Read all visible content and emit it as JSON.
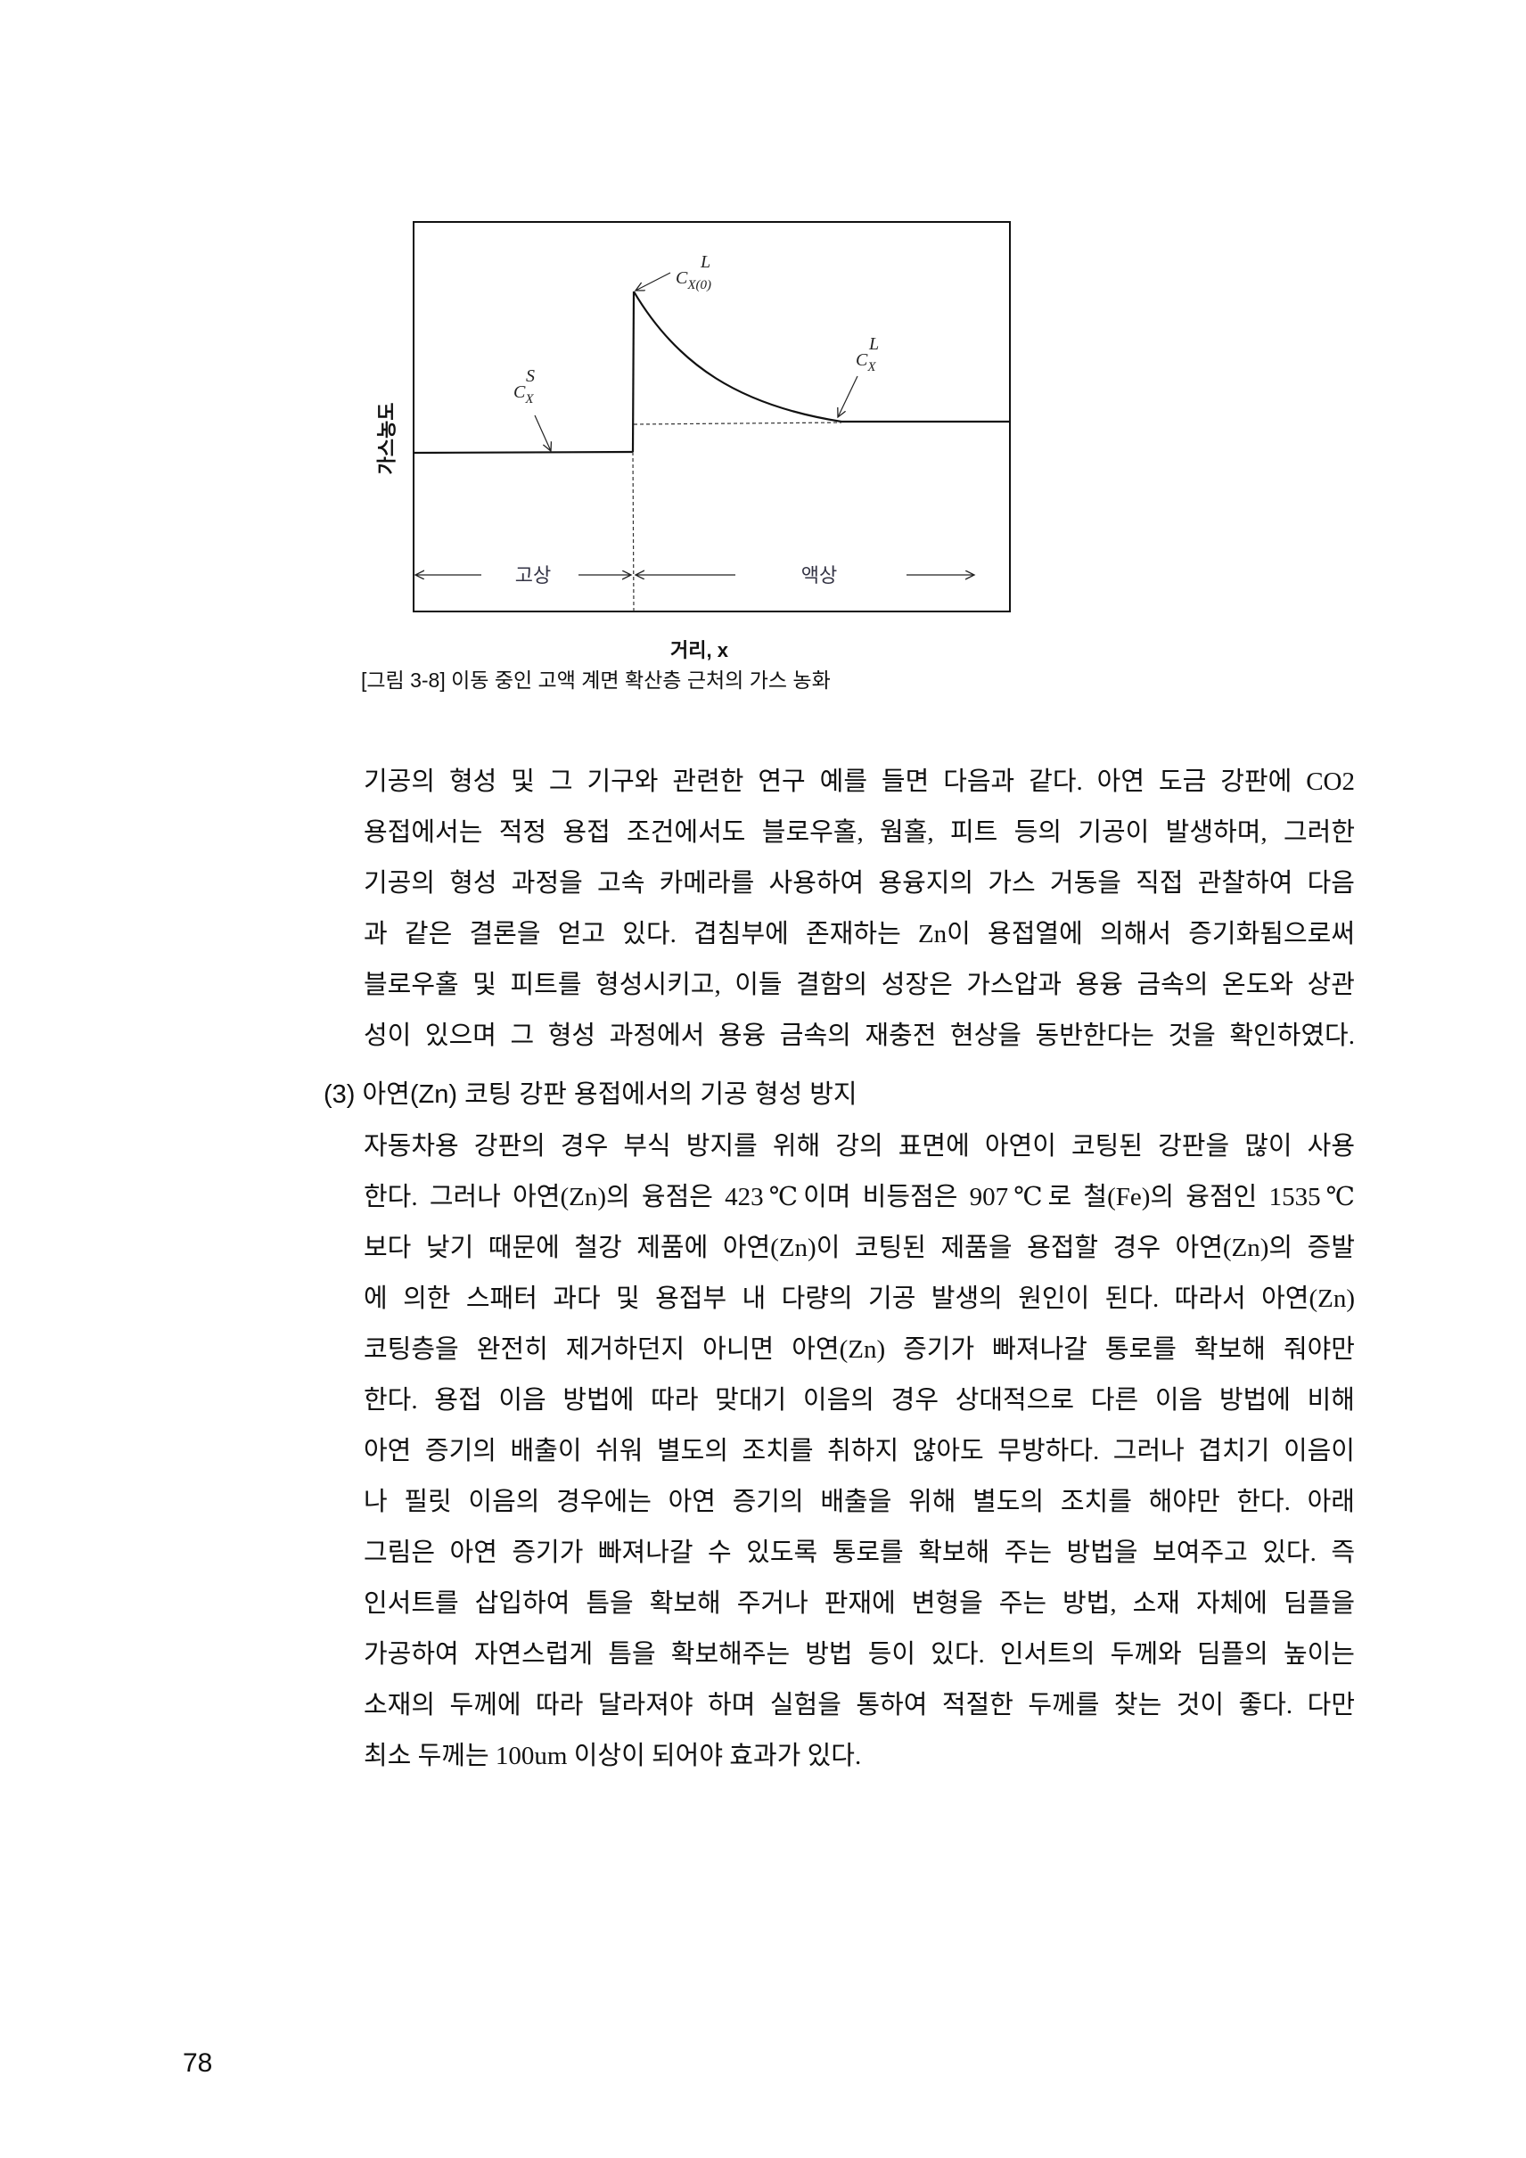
{
  "figure": {
    "y_axis_label": "가스농도",
    "x_axis_label": "거리, x",
    "caption": "[그림 3-8] 이동 중인 고액 계면 확산층 근처의 가스 농화",
    "region_solid": "고상",
    "region_liquid": "액상",
    "label_interface_liquid": {
      "base": "C",
      "sub": "X(0)",
      "sup": "L"
    },
    "label_bulk_liquid": {
      "base": "C",
      "sub": "X",
      "sup": "L"
    },
    "label_solid": {
      "base": "C",
      "sub": "X",
      "sup": "S"
    }
  },
  "paragraph1": [
    "기공의 형성 및 그 기구와 관련한 연구 예를 들면 다음과 같다. 아연 도금 강판에 CO2",
    "용접에서는 적정 용접 조건에서도 블로우홀, 웜홀, 피트 등의 기공이 발생하며, 그러한",
    "기공의 형성 과정을 고속 카메라를 사용하여 용융지의 가스 거동을 직접 관찰하여 다음",
    "과 같은 결론을 얻고 있다. 겹침부에 존재하는 Zn이 용접열에 의해서 증기화됨으로써",
    "블로우홀 및 피트를 형성시키고, 이들 결함의 성장은 가스압과 용융 금속의 온도와 상관",
    "성이 있으며 그 형성 과정에서 용융 금속의 재충전 현상을 동반한다는 것을 확인하였다."
  ],
  "section_heading": "(3) 아연(Zn) 코팅 강판 용접에서의 기공 형성 방지",
  "paragraph2": [
    "자동차용 강판의 경우 부식 방지를 위해 강의 표면에 아연이 코팅된 강판을 많이 사용",
    "한다. 그러나 아연(Zn)의 융점은 423℃이며 비등점은 907℃로 철(Fe)의 융점인 1535℃",
    "보다 낮기 때문에 철강 제품에 아연(Zn)이 코팅된 제품을 용접할 경우 아연(Zn)의 증발",
    "에 의한 스패터 과다 및 용접부 내 다량의 기공 발생의 원인이 된다. 따라서 아연(Zn)",
    "코팅층을 완전히 제거하던지 아니면 아연(Zn) 증기가 빠져나갈 통로를 확보해 줘야만",
    "한다. 용접 이음 방법에 따라 맞대기 이음의 경우 상대적으로 다른 이음 방법에 비해",
    "아연 증기의 배출이 쉬워 별도의 조치를 취하지 않아도 무방하다. 그러나 겹치기 이음이",
    "나 필릿 이음의 경우에는 아연 증기의 배출을 위해 별도의 조치를 해야만 한다. 아래",
    "그림은 아연 증기가 빠져나갈 수 있도록 통로를 확보해 주는 방법을 보여주고 있다. 즉",
    "인서트를 삽입하여 틈을 확보해 주거나 판재에 변형을 주는 방법, 소재 자체에 딤플을",
    "가공하여 자연스럽게 틈을 확보해주는 방법 등이 있다. 인서트의 두께와 딤플의 높이는",
    "소재의 두께에 따라 달라져야 하며 실험을 통하여 적절한 두께를 찾는 것이 좋다. 다만",
    "최소 두께는 100um 이상이 되어야 효과가 있다."
  ],
  "page_number": "78"
}
